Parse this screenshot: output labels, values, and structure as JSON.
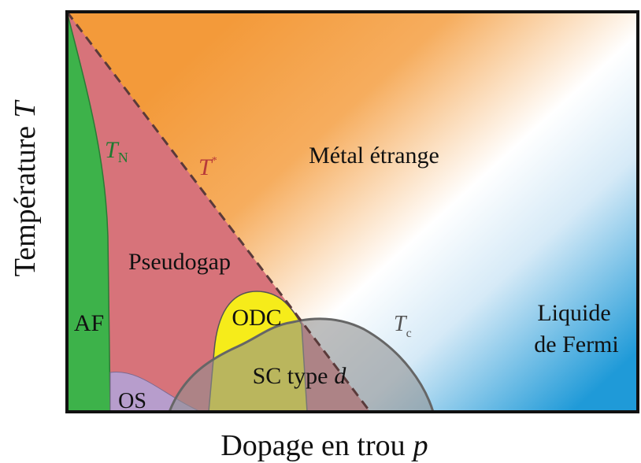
{
  "axes": {
    "y_label": "Température",
    "y_symbol": "T",
    "x_label": "Dopage en trou",
    "x_symbol": "p"
  },
  "regions": {
    "af": "AF",
    "pseudogap": "Pseudogap",
    "strange_metal": "Métal étrange",
    "odc": "ODC",
    "sc": {
      "text": "SC type",
      "symbol": "d"
    },
    "os": "OS",
    "fermi_liquid": [
      "Liquide",
      "de Fermi"
    ]
  },
  "lines": {
    "t_n": {
      "symbol": "T",
      "subscript": "N"
    },
    "t_star": {
      "symbol": "T",
      "superscript": "*"
    },
    "t_c": {
      "symbol": "T",
      "subscript": "c"
    }
  }
}
